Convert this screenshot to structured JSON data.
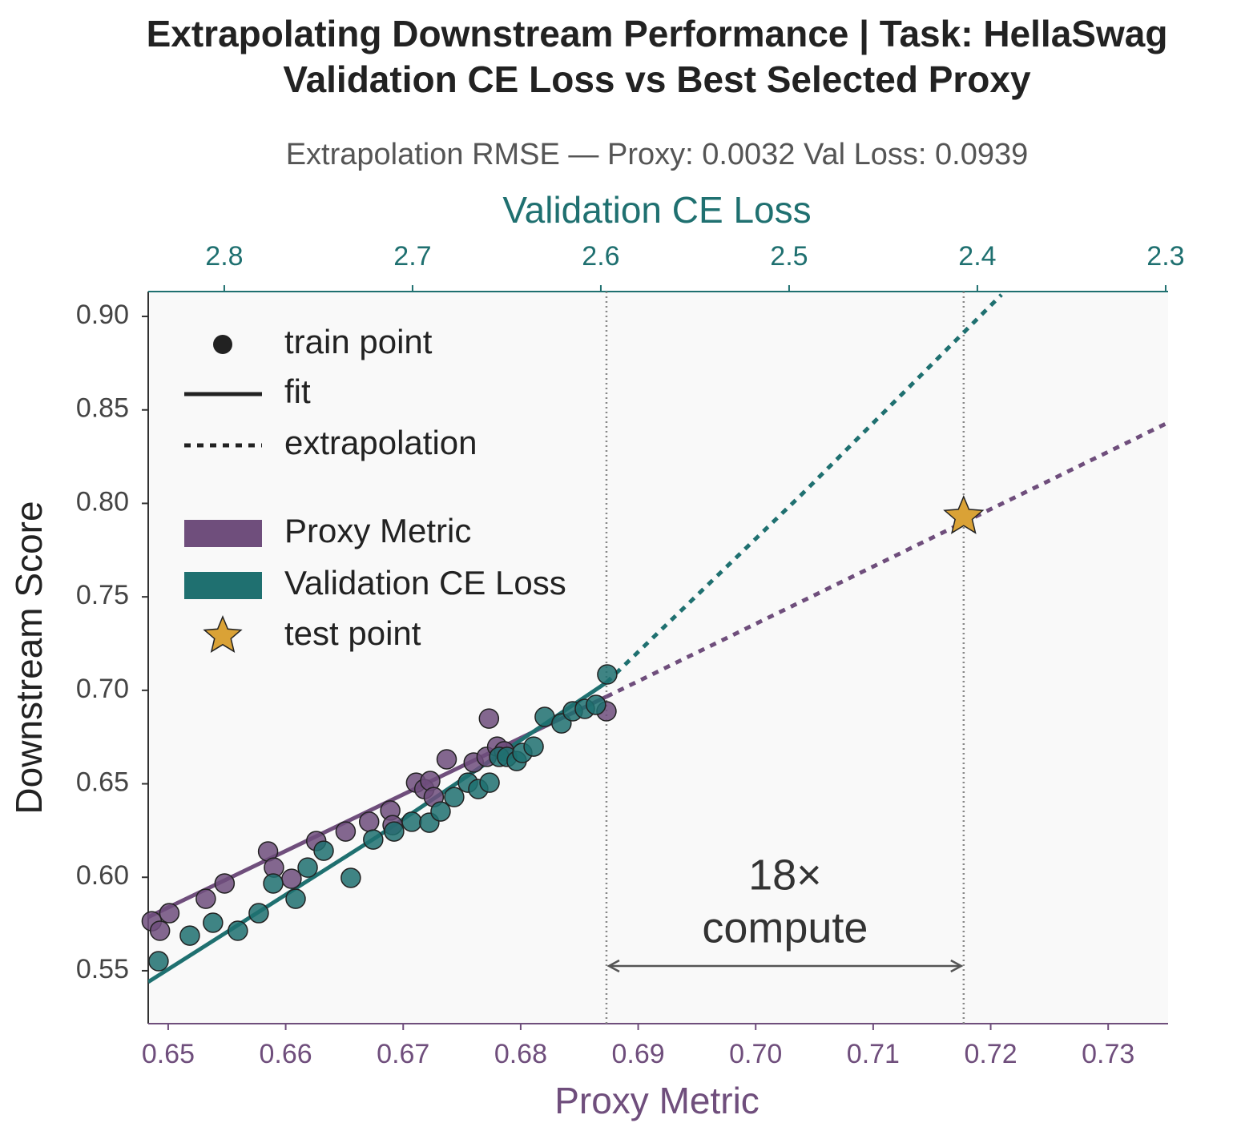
{
  "chart_data": {
    "type": "scatter",
    "title": [
      "Extrapolating Downstream Performance  |  Task: HellaSwag",
      "Validation CE Loss vs Best Selected Proxy"
    ],
    "subtitle": "Extrapolation RMSE — Proxy: 0.0032   Val Loss: 0.0939",
    "xlabel": "Proxy Metric",
    "x2label": "Validation CE Loss",
    "ylabel": "Downstream Score",
    "xlim": [
      0.6483,
      0.7351
    ],
    "x2lim": [
      2.8404,
      2.2987
    ],
    "ylim": [
      0.5217,
      0.9133
    ],
    "xticks": [
      {
        "value": 0.65,
        "label": "0.65"
      },
      {
        "value": 0.66,
        "label": "0.66"
      },
      {
        "value": 0.67,
        "label": "0.67"
      },
      {
        "value": 0.68,
        "label": "0.68"
      },
      {
        "value": 0.69,
        "label": "0.69"
      },
      {
        "value": 0.7,
        "label": "0.70"
      },
      {
        "value": 0.71,
        "label": "0.71"
      },
      {
        "value": 0.72,
        "label": "0.72"
      },
      {
        "value": 0.73,
        "label": "0.73"
      }
    ],
    "x2ticks": [
      2.8,
      2.7,
      2.6,
      2.5,
      2.4,
      2.3
    ],
    "yticks": [
      0.55,
      {
        "value": 0.6,
        "label": "0.60"
      },
      0.65,
      {
        "value": 0.7,
        "label": "0.70"
      },
      0.75,
      {
        "value": 0.8,
        "label": "0.80"
      },
      0.85,
      {
        "value": 0.9,
        "label": "0.90"
      }
    ],
    "legend_labels": {
      "train_point": "train point",
      "fit": "fit",
      "extrapolation": "extrapolation",
      "test_point": "test point"
    },
    "series": [
      {
        "name": "Proxy Metric",
        "color": "#6f4e7c",
        "axis": "x",
        "x": [
          0.6486,
          0.6493,
          0.6501,
          0.6532,
          0.6548,
          0.6585,
          0.659,
          0.6605,
          0.6626,
          0.6651,
          0.6671,
          0.6689,
          0.6691,
          0.6711,
          0.6718,
          0.6723,
          0.6726,
          0.6737,
          0.676,
          0.6773,
          0.6771,
          0.678,
          0.6786,
          0.6873
        ],
        "values": [
          0.5765,
          0.5714,
          0.5808,
          0.5885,
          0.5967,
          0.6138,
          0.6052,
          0.5992,
          0.6194,
          0.6245,
          0.6297,
          0.6357,
          0.6279,
          0.6506,
          0.6472,
          0.6515,
          0.6429,
          0.6631,
          0.6614,
          0.6849,
          0.6644,
          0.6699,
          0.6674,
          0.6888
        ],
        "fit": {
          "x": [
            0.6483,
            0.6873
          ],
          "values": [
            0.5787,
            0.6966
          ]
        },
        "extrapolation": {
          "x": [
            0.6873,
            0.7351
          ],
          "values": [
            0.6966,
            0.8432
          ]
        }
      },
      {
        "name": "Validation CE Loss",
        "color": "#1f7070",
        "axis": "x2",
        "x": [
          2.8349,
          2.8183,
          2.806,
          2.7928,
          2.7817,
          2.774,
          2.7621,
          2.7557,
          2.7472,
          2.7328,
          2.7209,
          2.7098,
          2.7004,
          2.6911,
          2.6851,
          2.6779,
          2.6706,
          2.6651,
          2.6591,
          2.654,
          2.6498,
          2.6447,
          2.6417,
          2.6357,
          2.6298,
          2.6209,
          2.6149,
          2.6085,
          2.6026,
          2.5966
        ],
        "values": [
          0.5551,
          0.5688,
          0.5757,
          0.5714,
          0.5808,
          0.5967,
          0.5885,
          0.6052,
          0.6142,
          0.5997,
          0.6202,
          0.6245,
          0.6297,
          0.6292,
          0.6352,
          0.6429,
          0.6506,
          0.6472,
          0.6506,
          0.6644,
          0.6644,
          0.6622,
          0.6665,
          0.6699,
          0.6858,
          0.6823,
          0.6888,
          0.6901,
          0.6922,
          0.7085
        ],
        "fit": {
          "x": [
            2.8404,
            2.7191,
            2.597
          ],
          "values": [
            0.544,
            0.6215,
            0.7042
          ]
        },
        "extrapolation": {
          "x": [
            2.597,
            2.4936,
            2.3872
          ],
          "values": [
            0.7042,
            0.8045,
            0.9116
          ]
        }
      }
    ],
    "test_point": {
      "x": 0.7177,
      "value": 0.7929,
      "color": "#daa236"
    },
    "reference_lines": [
      0.6873,
      0.7177
    ],
    "annotation": [
      "18×",
      "compute"
    ]
  }
}
